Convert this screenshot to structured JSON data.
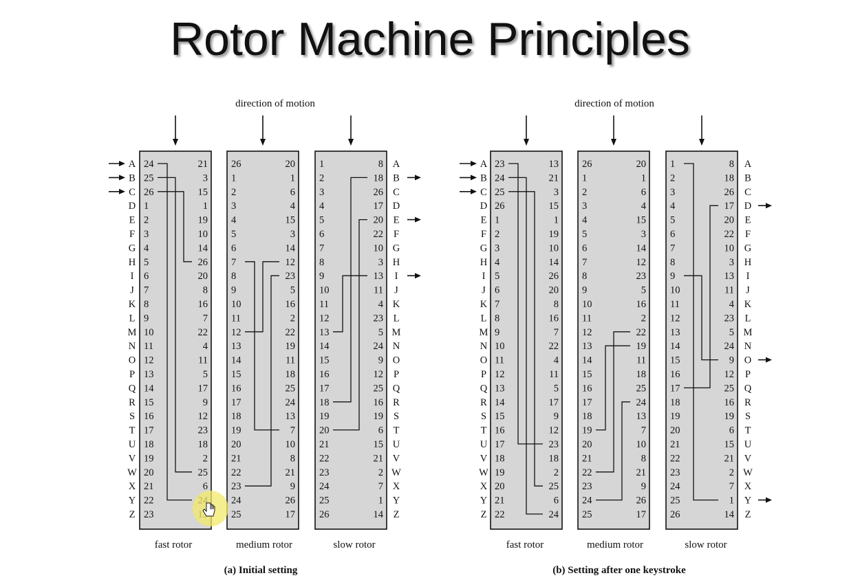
{
  "title": "Rotor Machine Principles",
  "letters": [
    "A",
    "B",
    "C",
    "D",
    "E",
    "F",
    "G",
    "H",
    "I",
    "J",
    "K",
    "L",
    "M",
    "N",
    "O",
    "P",
    "Q",
    "R",
    "S",
    "T",
    "U",
    "V",
    "W",
    "X",
    "Y",
    "Z"
  ],
  "diagrams": [
    {
      "caption": "(a) Initial setting",
      "direction_label": "direction of motion",
      "input_letters": [
        "A",
        "B",
        "C"
      ],
      "output_letters": [
        "B",
        "E",
        "I"
      ],
      "rotors": [
        {
          "name": "fast rotor",
          "left": [
            24,
            25,
            26,
            1,
            2,
            3,
            4,
            5,
            6,
            7,
            8,
            9,
            10,
            11,
            12,
            13,
            14,
            15,
            16,
            17,
            18,
            19,
            20,
            21,
            22,
            23
          ],
          "right": [
            21,
            3,
            15,
            1,
            19,
            10,
            14,
            26,
            20,
            8,
            16,
            7,
            22,
            4,
            11,
            5,
            17,
            9,
            12,
            23,
            18,
            2,
            25,
            6,
            24,
            13
          ]
        },
        {
          "name": "medium rotor",
          "left": [
            26,
            1,
            2,
            3,
            4,
            5,
            6,
            7,
            8,
            9,
            10,
            11,
            12,
            13,
            14,
            15,
            16,
            17,
            18,
            19,
            20,
            21,
            22,
            23,
            24,
            25
          ],
          "right": [
            20,
            1,
            6,
            4,
            15,
            3,
            14,
            12,
            23,
            5,
            16,
            2,
            22,
            19,
            11,
            18,
            25,
            24,
            13,
            7,
            10,
            8,
            21,
            9,
            26,
            17
          ]
        },
        {
          "name": "slow rotor",
          "left": [
            1,
            2,
            3,
            4,
            5,
            6,
            7,
            8,
            9,
            10,
            11,
            12,
            13,
            14,
            15,
            16,
            17,
            18,
            19,
            20,
            21,
            22,
            23,
            24,
            25,
            26
          ],
          "right": [
            8,
            18,
            26,
            17,
            20,
            22,
            10,
            3,
            13,
            11,
            4,
            23,
            5,
            24,
            9,
            12,
            25,
            16,
            19,
            6,
            15,
            21,
            2,
            7,
            1,
            14
          ]
        }
      ]
    },
    {
      "caption": "(b) Setting after one keystroke",
      "direction_label": "direction of motion",
      "input_letters": [
        "A",
        "B",
        "C"
      ],
      "output_letters": [
        "D",
        "O",
        "Y"
      ],
      "rotors": [
        {
          "name": "fast rotor",
          "left": [
            23,
            24,
            25,
            26,
            1,
            2,
            3,
            4,
            5,
            6,
            7,
            8,
            9,
            10,
            11,
            12,
            13,
            14,
            15,
            16,
            17,
            18,
            19,
            20,
            21,
            22
          ],
          "right": [
            13,
            21,
            3,
            15,
            1,
            19,
            10,
            14,
            26,
            20,
            8,
            16,
            7,
            22,
            4,
            11,
            5,
            17,
            9,
            12,
            23,
            18,
            2,
            25,
            6,
            24
          ]
        },
        {
          "name": "medium rotor",
          "left": [
            26,
            1,
            2,
            3,
            4,
            5,
            6,
            7,
            8,
            9,
            10,
            11,
            12,
            13,
            14,
            15,
            16,
            17,
            18,
            19,
            20,
            21,
            22,
            23,
            24,
            25
          ],
          "right": [
            20,
            1,
            6,
            4,
            15,
            3,
            14,
            12,
            23,
            5,
            16,
            2,
            22,
            19,
            11,
            18,
            25,
            24,
            13,
            7,
            10,
            8,
            21,
            9,
            26,
            17
          ]
        },
        {
          "name": "slow rotor",
          "left": [
            1,
            2,
            3,
            4,
            5,
            6,
            7,
            8,
            9,
            10,
            11,
            12,
            13,
            14,
            15,
            16,
            17,
            18,
            19,
            20,
            21,
            22,
            23,
            24,
            25,
            26
          ],
          "right": [
            8,
            18,
            26,
            17,
            20,
            22,
            10,
            3,
            13,
            11,
            4,
            23,
            5,
            24,
            9,
            12,
            25,
            16,
            19,
            6,
            15,
            21,
            2,
            7,
            1,
            14
          ]
        }
      ]
    }
  ]
}
